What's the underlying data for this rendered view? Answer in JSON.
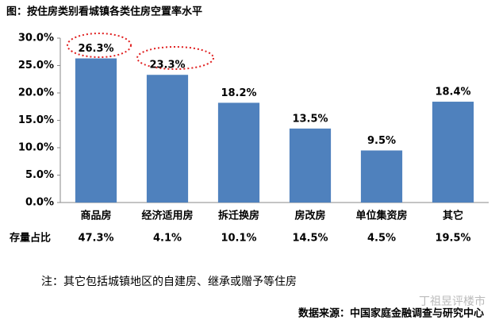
{
  "chart_data": {
    "type": "bar",
    "title": "图：按住房类别看城镇各类住房空置率水平",
    "categories": [
      "商品房",
      "经济适用房",
      "拆迁换房",
      "房改房",
      "单位集资房",
      "其它"
    ],
    "values": [
      26.3,
      23.3,
      18.2,
      13.5,
      9.5,
      18.4
    ],
    "value_labels": [
      "26.3%",
      "23.3%",
      "18.2%",
      "13.5%",
      "9.5%",
      "18.4%"
    ],
    "color": "#4f81bd",
    "ylim": [
      0,
      30
    ],
    "yticks": [
      {
        "value": 0,
        "label": "0.0%"
      },
      {
        "value": 5,
        "label": "5.0%"
      },
      {
        "value": 10,
        "label": "10.0%"
      },
      {
        "value": 15,
        "label": "15.0%"
      },
      {
        "value": 20,
        "label": "20.0%"
      },
      {
        "value": 25,
        "label": "25.0%"
      },
      {
        "value": 30,
        "label": "30.0%"
      }
    ],
    "share_label": "存量占比",
    "shares": [
      "47.3%",
      "4.1%",
      "10.1%",
      "14.5%",
      "4.5%",
      "19.5%"
    ],
    "note": "注：其它包括城镇地区的自建房、继承或赠予等住房",
    "source": "数据来源：中国家庭金融调查与研究中心",
    "watermark": "丁祖昱评楼市"
  }
}
